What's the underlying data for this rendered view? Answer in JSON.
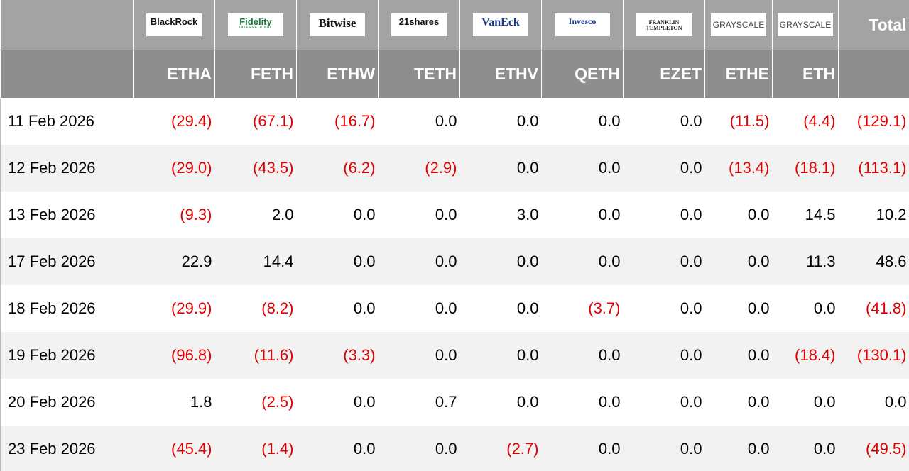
{
  "header": {
    "logos": [
      {
        "lines": [
          "BlackRock"
        ]
      },
      {
        "lines": [
          "Fidelity",
          "INTERNATIONAL"
        ]
      },
      {
        "lines": [
          "Bitwise"
        ]
      },
      {
        "lines": [
          "21shares"
        ]
      },
      {
        "lines": [
          "VanEck"
        ]
      },
      {
        "lines": [
          "Invesco"
        ]
      },
      {
        "lines": [
          "FRANKLIN",
          "TEMPLETON"
        ]
      },
      {
        "lines": [
          "GRAYSCALE"
        ]
      },
      {
        "lines": [
          "GRAYSCALE"
        ]
      }
    ],
    "total": "Total",
    "tickers": [
      "ETHA",
      "FETH",
      "ETHW",
      "TETH",
      "ETHV",
      "QETH",
      "EZET",
      "ETHE",
      "ETH"
    ]
  },
  "table": {
    "rows": [
      [
        "11 Feb 2026",
        "(29.4)",
        "(67.1)",
        "(16.7)",
        "0.0",
        "0.0",
        "0.0",
        "0.0",
        "(11.5)",
        "(4.4)",
        "(129.1)"
      ],
      [
        "12 Feb 2026",
        "(29.0)",
        "(43.5)",
        "(6.2)",
        "(2.9)",
        "0.0",
        "0.0",
        "0.0",
        "(13.4)",
        "(18.1)",
        "(113.1)"
      ],
      [
        "13 Feb 2026",
        "(9.3)",
        "2.0",
        "0.0",
        "0.0",
        "3.0",
        "0.0",
        "0.0",
        "0.0",
        "14.5",
        "10.2"
      ],
      [
        "17 Feb 2026",
        "22.9",
        "14.4",
        "0.0",
        "0.0",
        "0.0",
        "0.0",
        "0.0",
        "0.0",
        "11.3",
        "48.6"
      ],
      [
        "18 Feb 2026",
        "(29.9)",
        "(8.2)",
        "0.0",
        "0.0",
        "0.0",
        "(3.7)",
        "0.0",
        "0.0",
        "0.0",
        "(41.8)"
      ],
      [
        "19 Feb 2026",
        "(96.8)",
        "(11.6)",
        "(3.3)",
        "0.0",
        "0.0",
        "0.0",
        "0.0",
        "0.0",
        "(18.4)",
        "(130.1)"
      ],
      [
        "20 Feb 2026",
        "1.8",
        "(2.5)",
        "0.0",
        "0.7",
        "0.0",
        "0.0",
        "0.0",
        "0.0",
        "0.0",
        "0.0"
      ],
      [
        "23 Feb 2026",
        "(45.4)",
        "(1.4)",
        "0.0",
        "0.0",
        "(2.7)",
        "0.0",
        "0.0",
        "0.0",
        "0.0",
        "(49.5)"
      ]
    ]
  }
}
